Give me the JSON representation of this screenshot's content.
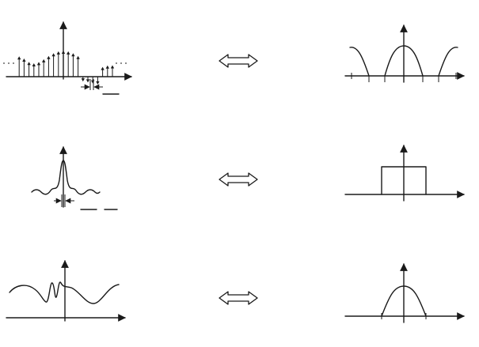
{
  "rows": [
    {
      "id": "discrete-periodic",
      "left": "impulse-train-sequence",
      "right": "periodic-continuous-spectrum"
    },
    {
      "id": "discrete-aperiodic",
      "left": "sinc-sequence",
      "right": "rectangular-spectrum"
    },
    {
      "id": "continuous-aperiodic",
      "left": "continuous-signal",
      "right": "bell-spectrum"
    }
  ],
  "icons": {
    "arrow": "double-headed-arrow-icon"
  },
  "colors": {
    "ink": "#1a1a1a",
    "paper": "#ffffff"
  }
}
